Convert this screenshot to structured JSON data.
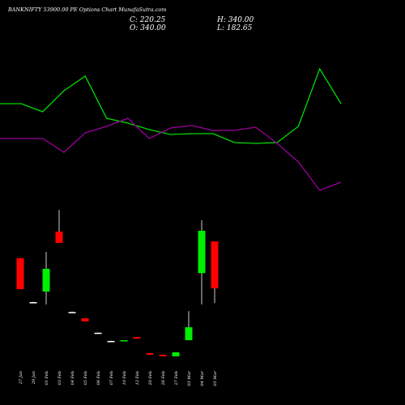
{
  "chart_data": [
    {
      "type": "candlestick",
      "title": "BANKNIFTY 53900.00 PE Options Chart MunafaSutra.com",
      "info": {
        "close": "C: 220.25",
        "high": "H: 340.00",
        "open": "O: 340.00",
        "low": "L: 182.65"
      },
      "categories": [
        "27 Jan",
        "29 Jan",
        "01 Feb",
        "03 Feb",
        "04 Feb",
        "05 Feb",
        "06 Feb",
        "07 Feb",
        "10 Feb",
        "12 Feb",
        "20 Feb",
        "26 Feb",
        "27 Feb",
        "03 Mar",
        "04 Mar",
        "05 Mar"
      ],
      "open": [
        297,
        185,
        212,
        365,
        160,
        144,
        107,
        86,
        87,
        96,
        55,
        51,
        47,
        88,
        259,
        340
      ],
      "high": [
        297,
        186,
        313,
        420,
        161,
        144,
        108,
        87,
        88,
        96,
        55,
        51,
        57,
        162,
        394,
        340
      ],
      "low": [
        218,
        184,
        179,
        336,
        159,
        136,
        106,
        85,
        86,
        92,
        51,
        47,
        47,
        88,
        179,
        182.65
      ],
      "close": [
        218,
        185,
        270,
        336,
        160,
        136,
        107,
        86,
        88,
        92,
        51,
        47,
        57,
        121,
        367,
        220.25
      ],
      "up_color": "#00ee00",
      "down_color": "#ff0000",
      "flat_color": "#ffffff",
      "ylim": [
        0,
        500
      ]
    },
    {
      "type": "line",
      "series": [
        {
          "color": "#00dd00",
          "values": [
            66,
            66,
            61,
            74,
            83,
            57,
            54,
            50,
            47,
            47.5,
            47.5,
            42,
            41.5,
            42,
            52,
            87.5,
            66
          ]
        },
        {
          "color": "#990099",
          "values": [
            44.5,
            44.5,
            44.5,
            36,
            48,
            52,
            57,
            44.5,
            51,
            52.5,
            49.5,
            49.5,
            51.5,
            41.5,
            30,
            12.5,
            17.5
          ]
        }
      ],
      "ylim": [
        0,
        130
      ]
    }
  ]
}
